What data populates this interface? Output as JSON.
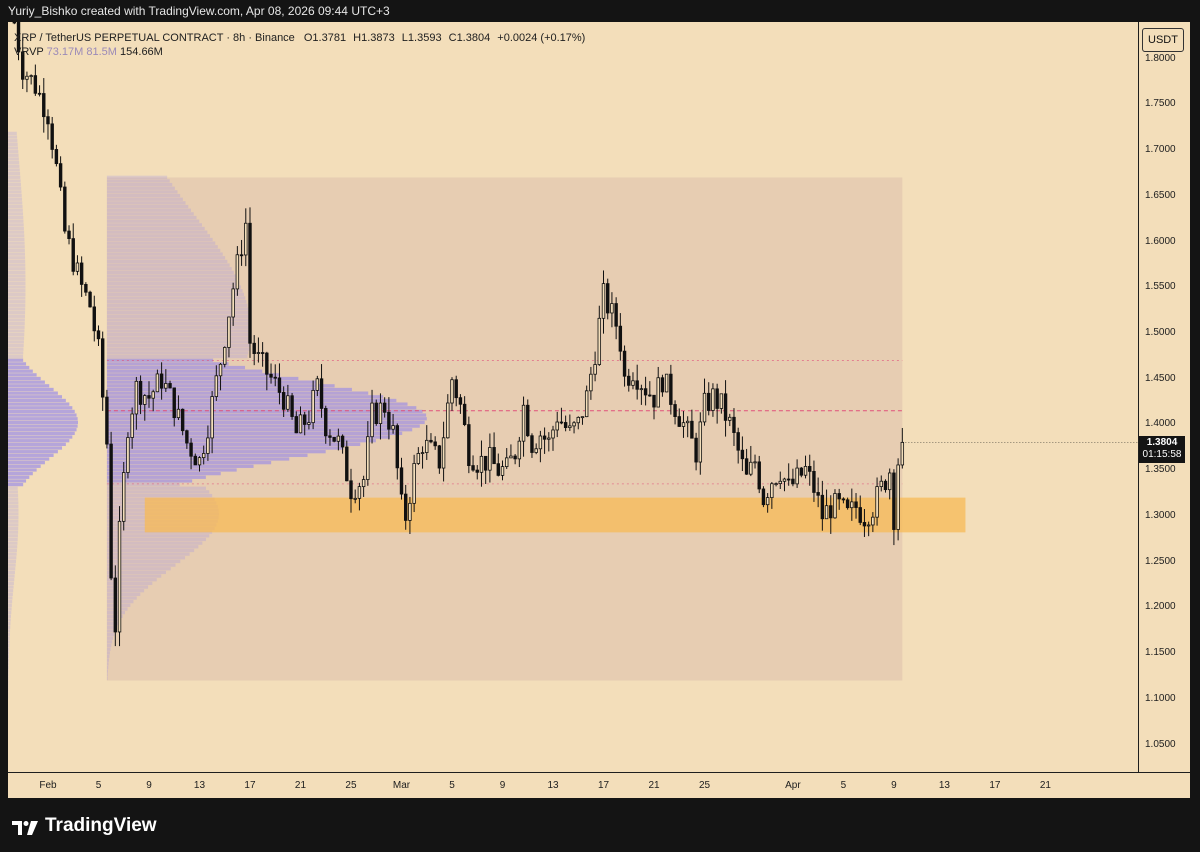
{
  "header": {
    "credit": "Yuriy_Bishko created with TradingView.com, Apr 08, 2026 09:44 UTC+3"
  },
  "legend": {
    "symbol": "XRP / TetherUS PERPETUAL CONTRACT · 8h · Binance",
    "open": "O1.3781",
    "high": "H1.3873",
    "low": "L1.3593",
    "close": "C1.3804",
    "change": "+0.0024 (+0.17%)",
    "indicator": "VRVP",
    "indicator_v1": "73.17M",
    "indicator_v2": "81.5M",
    "indicator_v3": "154.66M"
  },
  "price_axis": {
    "currency": "USDT",
    "current_price": "1.3804",
    "countdown": "01:15:58",
    "ticks": [
      "1.8000",
      "1.7500",
      "1.7000",
      "1.6500",
      "1.6000",
      "1.5500",
      "1.5000",
      "1.4500",
      "1.4000",
      "1.3500",
      "1.3000",
      "1.2500",
      "1.2000",
      "1.1500",
      "1.1000",
      "1.0500"
    ]
  },
  "time_axis": {
    "ticks": [
      {
        "label": "Feb",
        "i": 0
      },
      {
        "label": "5",
        "i": 12
      },
      {
        "label": "9",
        "i": 24
      },
      {
        "label": "13",
        "i": 36
      },
      {
        "label": "17",
        "i": 48
      },
      {
        "label": "21",
        "i": 60
      },
      {
        "label": "25",
        "i": 72
      },
      {
        "label": "Mar",
        "i": 84
      },
      {
        "label": "5",
        "i": 96
      },
      {
        "label": "9",
        "i": 108
      },
      {
        "label": "13",
        "i": 120
      },
      {
        "label": "17",
        "i": 132
      },
      {
        "label": "21",
        "i": 144
      },
      {
        "label": "25",
        "i": 156
      },
      {
        "label": "Apr",
        "i": 177
      },
      {
        "label": "5",
        "i": 189
      },
      {
        "label": "9",
        "i": 201
      },
      {
        "label": "13",
        "i": 213
      },
      {
        "label": "17",
        "i": 225
      },
      {
        "label": "21",
        "i": 237
      }
    ]
  },
  "footer": {
    "brand": "TradingView"
  },
  "chart_data": {
    "type": "candlestick",
    "timeframe": "8h",
    "price_range": [
      1.02,
      1.84
    ],
    "bar_index_range": [
      -9.5,
      259
    ],
    "vrvp_range": {
      "low": 1.12,
      "high": 1.67,
      "poc": 1.415,
      "value_area_high": 1.47,
      "value_area_low": 1.335
    },
    "support_zone": {
      "low": 1.282,
      "high": 1.32
    },
    "colors": {
      "background": "#f3deba",
      "candle": "#111111",
      "volume_profile": "#8c7ff0",
      "support_zone": "#f7b955",
      "poc_line": "#e0507a"
    },
    "keypoints": [
      [
        -8,
        1.84
      ],
      [
        -6,
        1.79
      ],
      [
        -3,
        1.77
      ],
      [
        0,
        1.74
      ],
      [
        2,
        1.68
      ],
      [
        4,
        1.61
      ],
      [
        6,
        1.58
      ],
      [
        8,
        1.55
      ],
      [
        10,
        1.53
      ],
      [
        12,
        1.48
      ],
      [
        14,
        1.38
      ],
      [
        15,
        1.24
      ],
      [
        16,
        1.18
      ],
      [
        17,
        1.28
      ],
      [
        19,
        1.4
      ],
      [
        21,
        1.44
      ],
      [
        24,
        1.43
      ],
      [
        27,
        1.45
      ],
      [
        30,
        1.42
      ],
      [
        33,
        1.38
      ],
      [
        36,
        1.36
      ],
      [
        38,
        1.4
      ],
      [
        41,
        1.47
      ],
      [
        44,
        1.55
      ],
      [
        47,
        1.62
      ],
      [
        48,
        1.49
      ],
      [
        50,
        1.47
      ],
      [
        53,
        1.45
      ],
      [
        56,
        1.43
      ],
      [
        59,
        1.39
      ],
      [
        62,
        1.41
      ],
      [
        64,
        1.44
      ],
      [
        66,
        1.4
      ],
      [
        69,
        1.38
      ],
      [
        72,
        1.33
      ],
      [
        75,
        1.34
      ],
      [
        77,
        1.41
      ],
      [
        80,
        1.42
      ],
      [
        82,
        1.39
      ],
      [
        84,
        1.31
      ],
      [
        85,
        1.3
      ],
      [
        87,
        1.35
      ],
      [
        89,
        1.38
      ],
      [
        91,
        1.37
      ],
      [
        93,
        1.36
      ],
      [
        96,
        1.45
      ],
      [
        98,
        1.42
      ],
      [
        100,
        1.37
      ],
      [
        102,
        1.36
      ],
      [
        105,
        1.36
      ],
      [
        107,
        1.35
      ],
      [
        109,
        1.35
      ],
      [
        111,
        1.37
      ],
      [
        113,
        1.42
      ],
      [
        115,
        1.38
      ],
      [
        117,
        1.39
      ],
      [
        119,
        1.38
      ],
      [
        121,
        1.41
      ],
      [
        124,
        1.39
      ],
      [
        126,
        1.4
      ],
      [
        128,
        1.43
      ],
      [
        130,
        1.48
      ],
      [
        132,
        1.54
      ],
      [
        134,
        1.52
      ],
      [
        135,
        1.51
      ],
      [
        136,
        1.49
      ],
      [
        137,
        1.45
      ],
      [
        139,
        1.46
      ],
      [
        142,
        1.44
      ],
      [
        144,
        1.43
      ],
      [
        146,
        1.45
      ],
      [
        148,
        1.43
      ],
      [
        150,
        1.41
      ],
      [
        152,
        1.39
      ],
      [
        154,
        1.37
      ],
      [
        156,
        1.42
      ],
      [
        158,
        1.43
      ],
      [
        160,
        1.42
      ],
      [
        162,
        1.4
      ],
      [
        164,
        1.37
      ],
      [
        166,
        1.34
      ],
      [
        168,
        1.36
      ],
      [
        170,
        1.32
      ],
      [
        172,
        1.34
      ],
      [
        174,
        1.35
      ],
      [
        176,
        1.33
      ],
      [
        178,
        1.34
      ],
      [
        180,
        1.35
      ],
      [
        182,
        1.33
      ],
      [
        184,
        1.3
      ],
      [
        186,
        1.31
      ],
      [
        188,
        1.31
      ],
      [
        190,
        1.3
      ],
      [
        192,
        1.31
      ],
      [
        194,
        1.3
      ],
      [
        196,
        1.31
      ],
      [
        198,
        1.33
      ],
      [
        200,
        1.35
      ],
      [
        201,
        1.3
      ],
      [
        202,
        1.36
      ],
      [
        203,
        1.3804
      ]
    ]
  }
}
